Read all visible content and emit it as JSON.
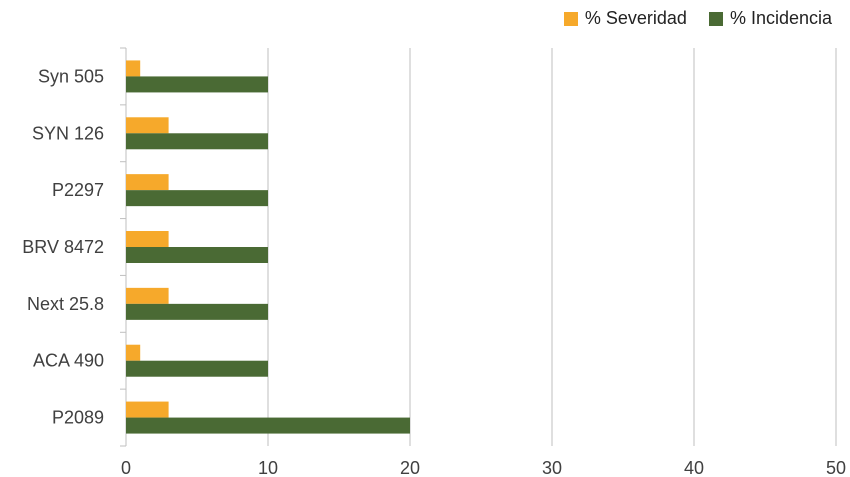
{
  "chart_data": {
    "type": "bar",
    "orientation": "horizontal",
    "categories": [
      "Syn 505",
      "SYN 126",
      "P2297",
      "BRV 8472",
      "Next 25.8",
      "ACA 490",
      "P2089"
    ],
    "series": [
      {
        "name": "% Severidad",
        "color": "#f6a92b",
        "values": [
          1,
          3,
          3,
          3,
          3,
          1,
          3
        ]
      },
      {
        "name": "% Incidencia",
        "color": "#4a6a34",
        "values": [
          10,
          10,
          10,
          10,
          10,
          10,
          20
        ]
      }
    ],
    "xlim": [
      0,
      50
    ],
    "xticks": [
      0,
      10,
      20,
      30,
      40,
      50
    ],
    "grid": true,
    "legend_position": "top-right"
  }
}
